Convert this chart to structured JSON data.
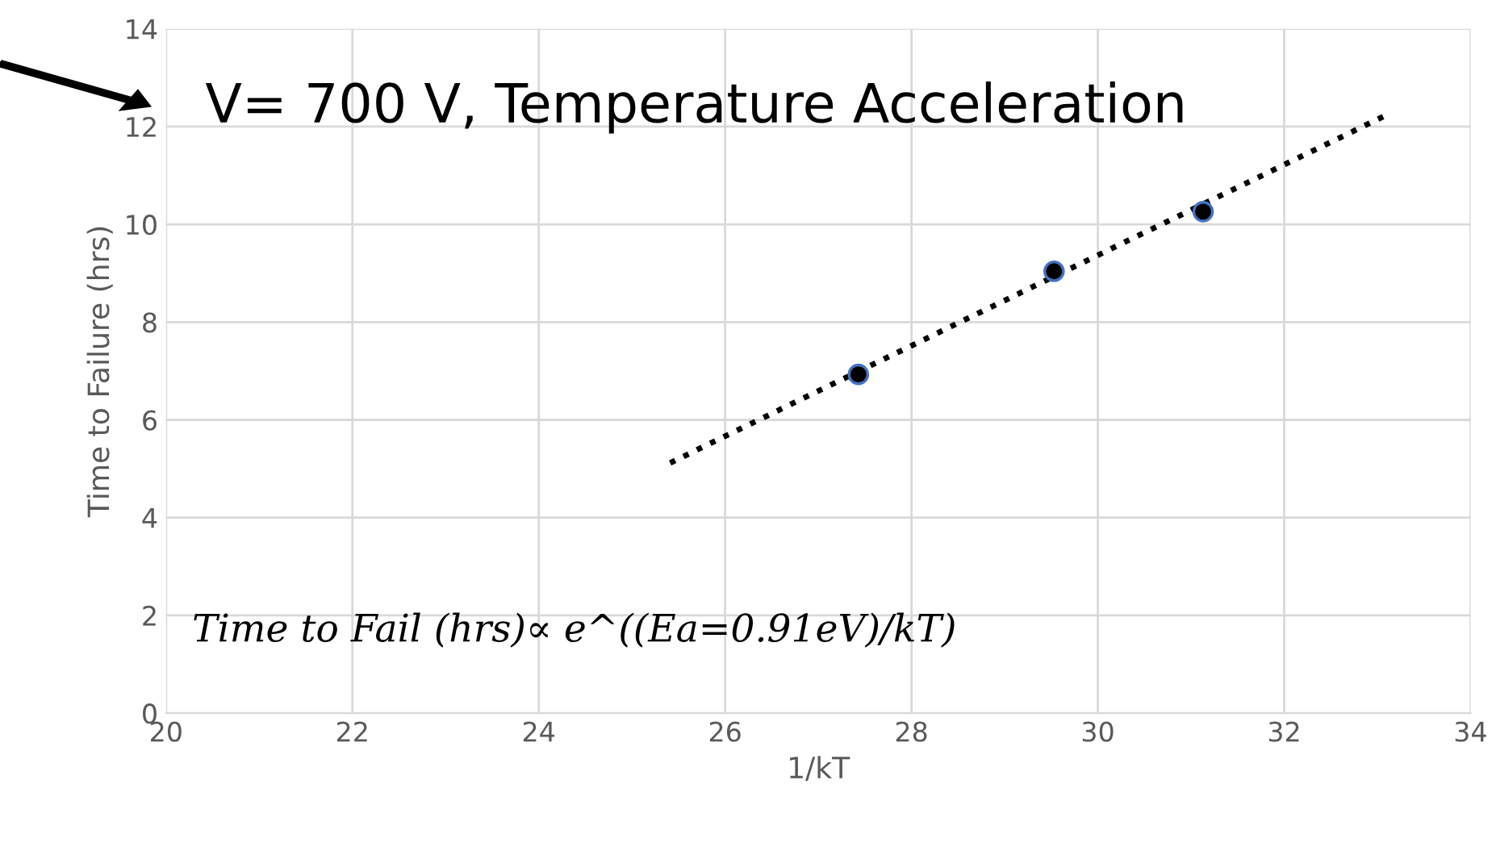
{
  "chart_data": {
    "type": "scatter",
    "xlabel": "1/kT",
    "ylabel": "Time to Failure (hrs)",
    "annotations": [
      "V= 700 V, Temperature Acceleration",
      "Time to Fail (hrs)∝ e^((Ea=0.91eV)/kT)"
    ],
    "series": [
      {
        "x": [
          27.43,
          29.53,
          31.13
        ],
        "values": [
          6.93,
          9.04,
          10.26
        ],
        "color": "#000000",
        "marker": "circle"
      },
      {
        "type": "line",
        "x": [
          25.41,
          33.07
        ],
        "values": [
          5.12,
          12.21
        ],
        "color": "#000000",
        "line_style": "dotted",
        "marker": "none"
      }
    ],
    "xlim": [
      20,
      34
    ],
    "xticks": [
      20,
      22,
      24,
      26,
      28,
      30,
      32,
      34
    ],
    "ylim": [
      0,
      14
    ],
    "yticks": [
      0,
      2,
      4,
      6,
      8,
      10,
      12,
      14
    ],
    "grid": true,
    "legend": false
  }
}
